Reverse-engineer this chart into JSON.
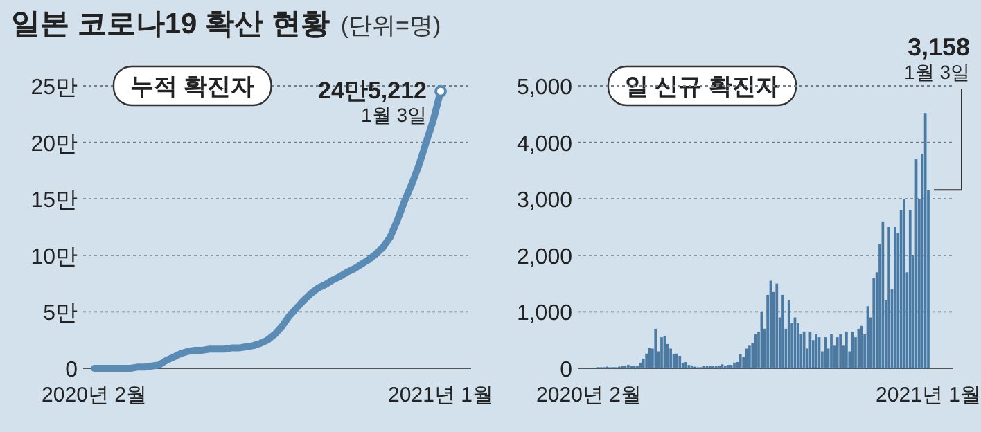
{
  "chart_data": [
    {
      "type": "line",
      "title": "일본 코로나19 확산 현황",
      "subtitle": "(단위=명)",
      "annotations": [
        "누적 확진자",
        {
          "text": "24만5,212",
          "x": "2021년 1월",
          "y": 24.5212
        },
        {
          "text": "1월 3일",
          "x": "2021년 1월",
          "y": 24.5212
        }
      ],
      "categories": [
        "2020년 2월",
        null,
        null,
        null,
        null,
        null,
        null,
        null,
        null,
        null,
        null,
        null,
        null,
        null,
        null,
        null,
        null,
        null,
        null,
        null,
        null,
        null,
        null,
        null,
        null,
        null,
        null,
        null,
        null,
        null,
        null,
        null,
        null,
        null,
        null,
        null,
        null,
        null,
        null,
        null,
        null,
        null,
        null,
        null,
        null,
        null,
        null,
        null,
        "2021년 1월"
      ],
      "values": [
        0,
        0,
        0,
        0,
        0,
        0,
        0.1,
        0.1,
        0.2,
        0.3,
        0.7,
        1,
        1.3,
        1.5,
        1.6,
        1.6,
        1.7,
        1.7,
        1.7,
        1.8,
        1.8,
        1.9,
        2,
        2.2,
        2.5,
        3,
        3.7,
        4.6,
        5.3,
        6,
        6.6,
        7.1,
        7.4,
        7.8,
        8.1,
        8.5,
        8.8,
        9.2,
        9.6,
        10.1,
        10.7,
        11.6,
        13.1,
        14.8,
        16.3,
        18,
        20,
        22,
        24.5212
      ],
      "color": "#5a8bb5",
      "ylim": [
        0,
        25
      ],
      "yticks": [
        0,
        {
          "value": 5,
          "label": "5만"
        },
        {
          "value": 10,
          "label": "10만"
        },
        {
          "value": 15,
          "label": "15만"
        },
        {
          "value": 20,
          "label": "20만"
        },
        {
          "value": 25,
          "label": "25만"
        }
      ],
      "grid": "y"
    },
    {
      "type": "bar",
      "title": "일 신규 확진자",
      "annotations": [
        {
          "text": "3,158",
          "x": "2021년 1월",
          "y": 3158
        },
        {
          "text": "1월 3일",
          "x": "2021년 1월",
          "y": 3158
        }
      ],
      "categories": [
        "2020년 2월",
        null,
        null,
        null,
        null,
        null,
        null,
        null,
        null,
        null,
        null,
        null,
        null,
        null,
        null,
        null,
        null,
        null,
        null,
        null,
        null,
        null,
        null,
        null,
        null,
        null,
        null,
        null,
        null,
        null,
        null,
        null,
        null,
        null,
        null,
        null,
        null,
        null,
        null,
        null,
        null,
        null,
        null,
        null,
        null,
        null,
        null,
        null,
        null,
        null,
        null,
        null,
        null,
        null,
        null,
        null,
        null,
        null,
        null,
        null,
        null,
        null,
        null,
        null,
        null,
        null,
        null,
        null,
        null,
        null,
        null,
        null,
        null,
        null,
        null,
        null,
        null,
        null,
        null,
        null,
        null,
        null,
        null,
        null,
        null,
        null,
        null,
        null,
        null,
        null,
        null,
        null,
        null,
        null,
        null,
        null,
        null,
        null,
        null,
        null,
        null,
        null,
        null,
        null,
        null,
        null,
        null,
        null,
        null,
        null,
        null,
        null,
        "2021년 1월"
      ],
      "values": [
        0,
        0,
        0,
        20,
        20,
        20,
        30,
        20,
        20,
        20,
        30,
        40,
        50,
        60,
        40,
        50,
        40,
        100,
        170,
        260,
        360,
        350,
        700,
        300,
        550,
        570,
        430,
        350,
        250,
        260,
        220,
        100,
        110,
        60,
        50,
        30,
        20,
        20,
        40,
        40,
        40,
        40,
        40,
        50,
        70,
        50,
        60,
        60,
        100,
        110,
        250,
        200,
        350,
        400,
        450,
        600,
        650,
        1000,
        700,
        1300,
        1550,
        1350,
        1500,
        900,
        1300,
        700,
        1200,
        800,
        900,
        800,
        600,
        650,
        350,
        650,
        500,
        600,
        550,
        300,
        550,
        350,
        600,
        400,
        550,
        600,
        400,
        650,
        300,
        650,
        550,
        700,
        750,
        600,
        1100,
        900,
        1600,
        1700,
        2200,
        2600,
        1200,
        2500,
        1400,
        2500,
        2400,
        2800,
        3000,
        1700,
        2800,
        2000,
        3700,
        3000,
        3800,
        4520,
        3158
      ],
      "color": "#4a7aa3",
      "ylim": [
        0,
        5000
      ],
      "yticks": [
        0,
        {
          "value": 1000,
          "label": "1,000"
        },
        {
          "value": 2000,
          "label": "2,000"
        },
        {
          "value": 3000,
          "label": "3,000"
        },
        {
          "value": 4000,
          "label": "4,000"
        },
        {
          "value": 5000,
          "label": "5,000"
        }
      ],
      "grid": "y"
    }
  ]
}
